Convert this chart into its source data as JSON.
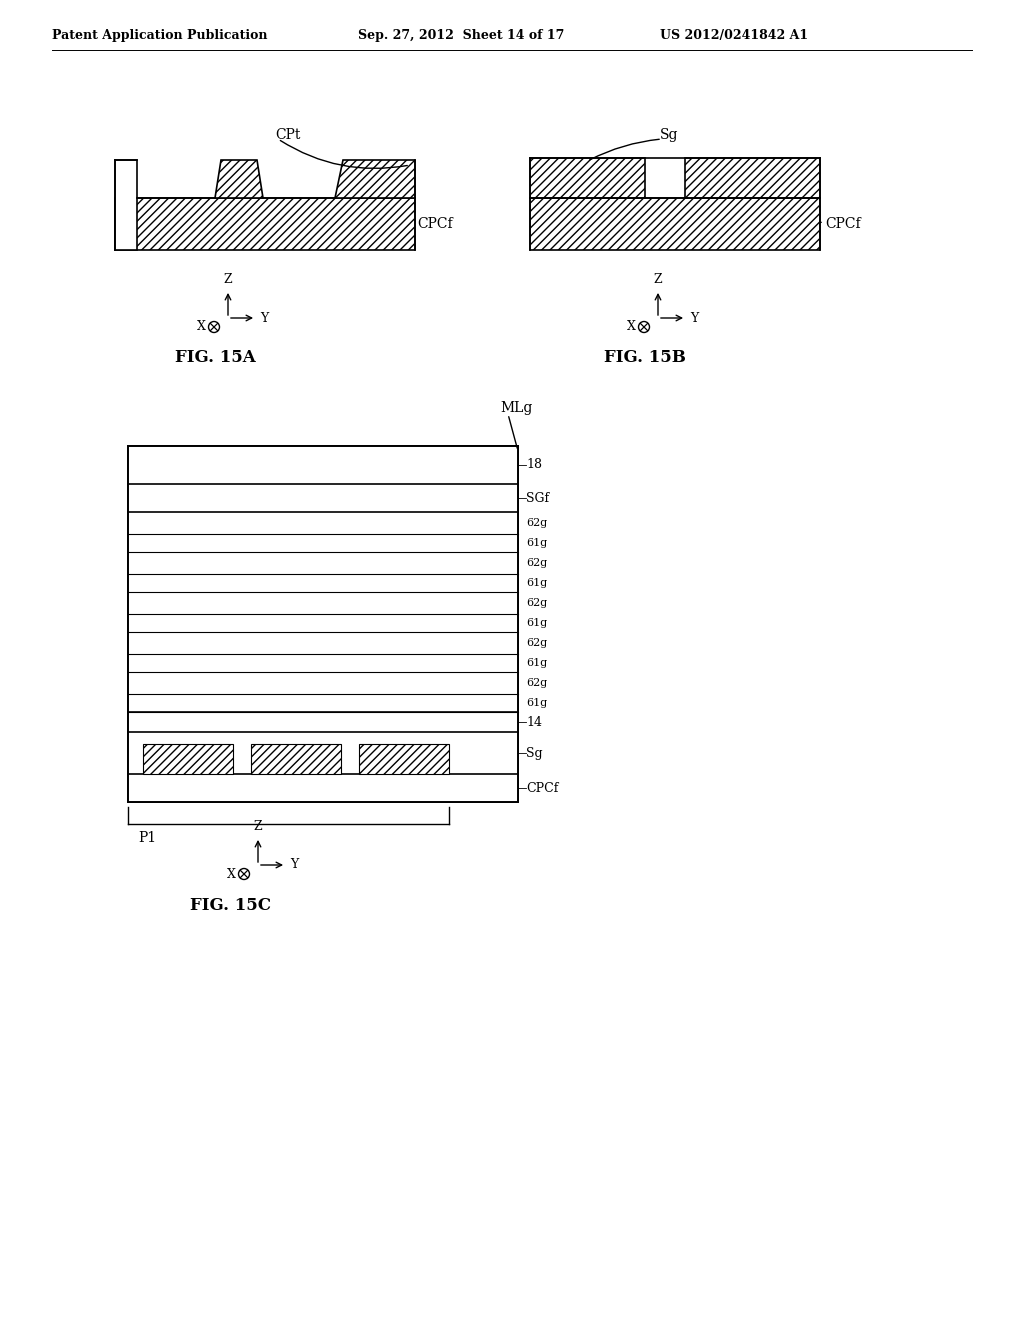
{
  "header_left": "Patent Application Publication",
  "header_mid": "Sep. 27, 2012  Sheet 14 of 17",
  "header_right": "US 2012/0241842 A1",
  "bg_color": "#ffffff",
  "line_color": "#000000"
}
